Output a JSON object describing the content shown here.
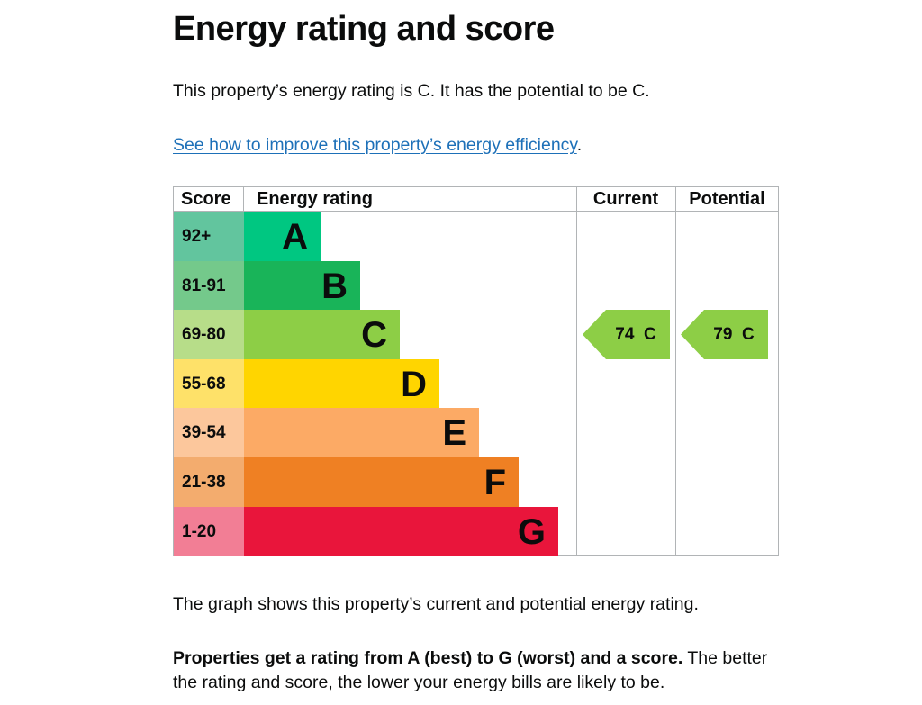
{
  "heading": "Energy rating and score",
  "intro": "This property’s energy rating is C. It has the potential to be C.",
  "link": {
    "text": "See how to improve this property’s energy efficiency",
    "suffix": "."
  },
  "chart": {
    "headers": {
      "score": "Score",
      "rating": "Energy rating",
      "current": "Current",
      "potential": "Potential"
    },
    "bands": [
      {
        "score": "92+",
        "letter": "A",
        "bar_color": "#00c781",
        "score_color": "#62c59e"
      },
      {
        "score": "81-91",
        "letter": "B",
        "bar_color": "#19b459",
        "score_color": "#74c98b"
      },
      {
        "score": "69-80",
        "letter": "C",
        "bar_color": "#8dce46",
        "score_color": "#b7dd89"
      },
      {
        "score": "55-68",
        "letter": "D",
        "bar_color": "#ffd500",
        "score_color": "#fee169"
      },
      {
        "score": "39-54",
        "letter": "E",
        "bar_color": "#fcaa65",
        "score_color": "#fcc79c"
      },
      {
        "score": "21-38",
        "letter": "F",
        "bar_color": "#ef8023",
        "score_color": "#f3ac6e"
      },
      {
        "score": "1-20",
        "letter": "G",
        "bar_color": "#e9153b",
        "score_color": "#f27e95"
      }
    ],
    "current": {
      "label": "74  C",
      "band": "C",
      "color": "#8dce46"
    },
    "potential": {
      "label": "79  C",
      "band": "C",
      "color": "#8dce46"
    }
  },
  "graph_note": "The graph shows this property’s current and potential energy rating.",
  "bottom": {
    "bold": "Properties get a rating from A (best) to G (worst) and a score.",
    "rest": " The better the rating and score, the lower your energy bills are likely to be."
  }
}
